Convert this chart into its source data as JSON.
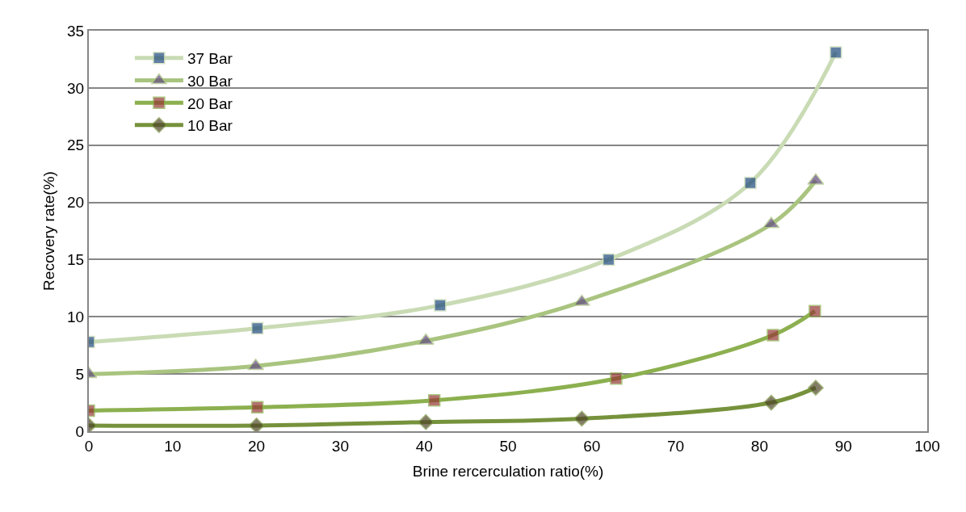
{
  "chart_data": {
    "type": "line",
    "xlabel": "Brine rercerculation ratio(%)",
    "ylabel": "Recovery rate(%)",
    "xlim": [
      0,
      100
    ],
    "xticks": [
      0,
      10,
      20,
      30,
      40,
      50,
      60,
      70,
      80,
      90,
      100
    ],
    "ylim": [
      0,
      35
    ],
    "yticks": [
      0,
      5,
      10,
      15,
      20,
      25,
      30,
      35
    ],
    "grid": "y",
    "legend": "top left",
    "series": [
      {
        "name": "37 Bar",
        "color": "#c9dbb4",
        "marker": "square",
        "colors": [
          "#1f497d",
          "#1f497d",
          "#1f497d",
          "#1f497d",
          "#1f497d",
          "#1f497d"
        ],
        "x": [
          0,
          20.1,
          41.9,
          62.0,
          78.9,
          89.1
        ],
        "values": [
          7.8,
          9.0,
          11.0,
          15.0,
          21.7,
          33.1
        ]
      },
      {
        "name": "30 Bar",
        "color": "#a9c47f",
        "marker": "triangle",
        "colors": [
          "#604a7b",
          "#604a7b",
          "#604a7b",
          "#604a7b",
          "#604a7b",
          "#604a7b"
        ],
        "x": [
          0,
          19.9,
          40.2,
          58.8,
          81.4,
          86.7
        ],
        "values": [
          5.0,
          5.7,
          7.9,
          11.3,
          18.1,
          21.9
        ]
      },
      {
        "name": "20 Bar",
        "color": "#8cb04f",
        "marker": "square",
        "colors": [
          "#953735",
          "#953735",
          "#953735",
          "#953735",
          "#953735",
          "#953735"
        ],
        "x": [
          0,
          20.1,
          41.2,
          62.9,
          81.6,
          86.6
        ],
        "values": [
          1.8,
          2.1,
          2.7,
          4.6,
          8.4,
          10.5
        ]
      },
      {
        "name": "10 Bar",
        "color": "#76923c",
        "marker": "diamond",
        "colors": [
          "#4f4628",
          "#4f4628",
          "#4f4628",
          "#4f4628",
          "#4f4628",
          "#4f4628"
        ],
        "x": [
          0,
          20.0,
          40.2,
          58.8,
          81.4,
          86.7
        ],
        "values": [
          0.5,
          0.5,
          0.8,
          1.1,
          2.5,
          3.8
        ]
      }
    ]
  }
}
